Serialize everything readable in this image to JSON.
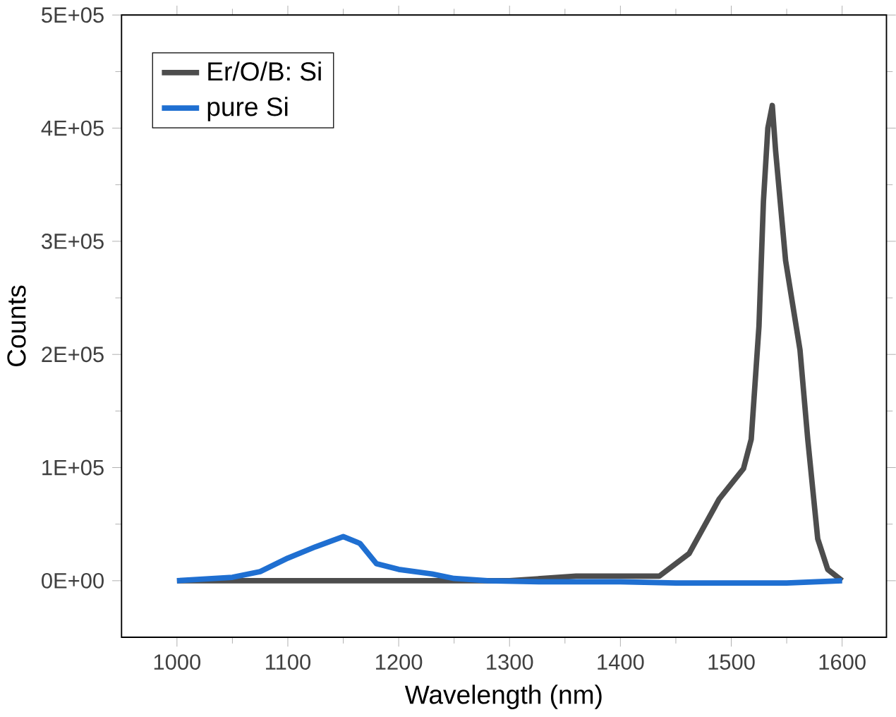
{
  "chart_data": {
    "type": "line",
    "xlabel": "Wavelength (nm)",
    "ylabel": "Counts",
    "xlim": [
      950,
      1640
    ],
    "xticks": [
      1000,
      1100,
      1200,
      1300,
      1400,
      1500,
      1600
    ],
    "ylim": [
      -50000,
      500000
    ],
    "yticks": [
      {
        "value": 0,
        "label": "0E+00"
      },
      {
        "value": 100000,
        "label": "1E+05"
      },
      {
        "value": 200000,
        "label": "2E+05"
      },
      {
        "value": 300000,
        "label": "3E+05"
      },
      {
        "value": 400000,
        "label": "4E+05"
      },
      {
        "value": 500000,
        "label": "5E+05"
      }
    ],
    "legend": "top left",
    "grid": false,
    "marker": "none",
    "line_style": "solid",
    "series": [
      {
        "name": "Er/O/B: Si",
        "color": "#4d4d4d",
        "x": [
          1000,
          1100,
          1200,
          1300,
          1360,
          1400,
          1435,
          1462,
          1489,
          1511,
          1518,
          1525,
          1529,
          1533,
          1537,
          1540,
          1549,
          1562,
          1569,
          1578,
          1587,
          1600
        ],
        "values": [
          0,
          0,
          0,
          0,
          4000,
          4000,
          4000,
          24000,
          72000,
          99000,
          125000,
          225000,
          335000,
          400000,
          420000,
          380000,
          283000,
          204000,
          125000,
          37000,
          10000,
          0
        ]
      },
      {
        "name": "pure Si",
        "color": "#1f6fd1",
        "x": [
          1000,
          1050,
          1075,
          1100,
          1125,
          1150,
          1165,
          1180,
          1200,
          1230,
          1250,
          1280,
          1330,
          1400,
          1450,
          1500,
          1550,
          1600
        ],
        "values": [
          0,
          3000,
          8000,
          20000,
          30000,
          39000,
          33000,
          15000,
          10000,
          6000,
          2000,
          0,
          -1000,
          -1000,
          -2000,
          -2000,
          -2000,
          0
        ]
      }
    ]
  }
}
